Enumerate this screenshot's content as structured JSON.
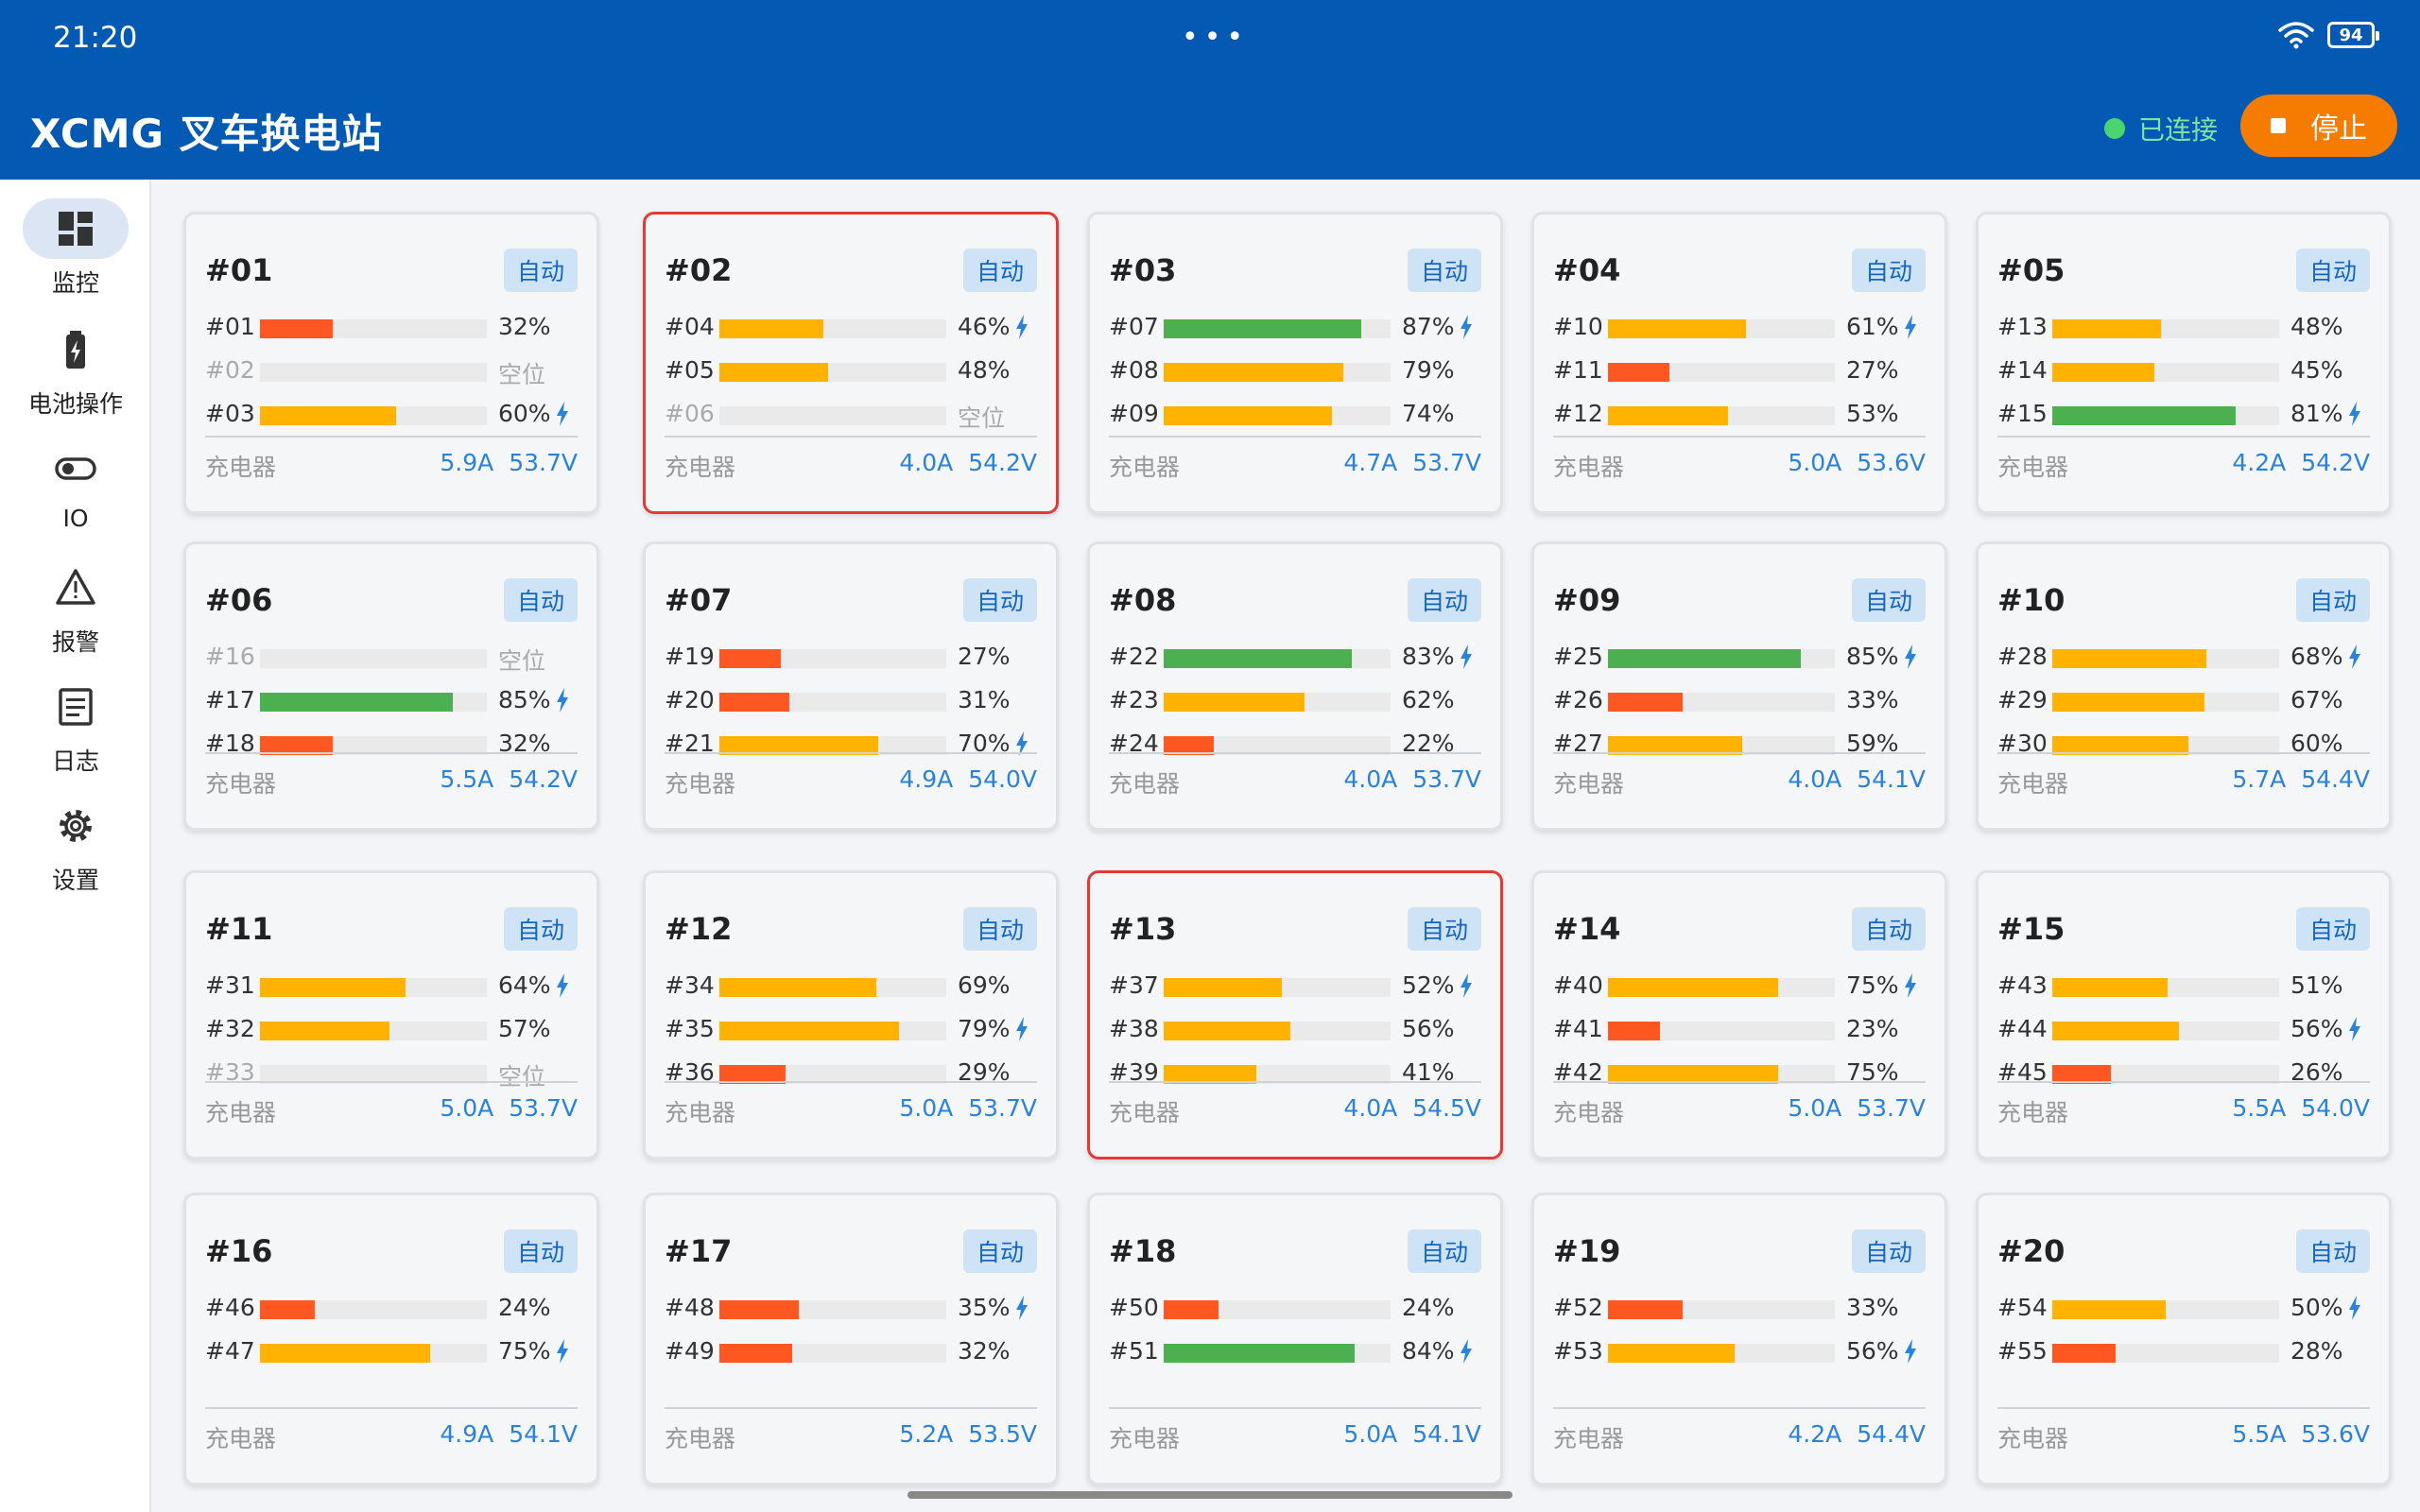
{
  "status_bar": {
    "time": "21:20",
    "battery": "94",
    "dots": "•••"
  },
  "header": {
    "title": "XCMG 叉车换电站",
    "connection": "已连接",
    "stop_label": "停止"
  },
  "colors": {
    "header_bg": "#045ab3",
    "high": "#4caf50",
    "mid": "#ffb300",
    "low": "#ff5722",
    "stop": "#f57c00",
    "alert_border": "#e53935"
  },
  "sidebar": {
    "items": [
      {
        "label": "监控",
        "icon": "dashboard-icon",
        "active": true
      },
      {
        "label": "电池操作",
        "icon": "battery-charging-icon",
        "active": false
      },
      {
        "label": "IO",
        "icon": "toggle-icon",
        "active": false
      },
      {
        "label": "报警",
        "icon": "warning-icon",
        "active": false
      },
      {
        "label": "日志",
        "icon": "log-list-icon",
        "active": false
      },
      {
        "label": "设置",
        "icon": "gear-icon",
        "active": false
      }
    ]
  },
  "charger_label": "充电器",
  "empty_label": "空位",
  "stations": [
    {
      "id": "#01",
      "mode": "自动",
      "alert": false,
      "slots": [
        {
          "id": "#01",
          "pct": 32,
          "charging": false
        },
        {
          "id": "#02",
          "pct": null,
          "charging": false
        },
        {
          "id": "#03",
          "pct": 60,
          "charging": true
        }
      ],
      "current": "5.9A",
      "voltage": "53.7V"
    },
    {
      "id": "#02",
      "mode": "自动",
      "alert": true,
      "slots": [
        {
          "id": "#04",
          "pct": 46,
          "charging": true
        },
        {
          "id": "#05",
          "pct": 48,
          "charging": false
        },
        {
          "id": "#06",
          "pct": null,
          "charging": false
        }
      ],
      "current": "4.0A",
      "voltage": "54.2V"
    },
    {
      "id": "#03",
      "mode": "自动",
      "alert": false,
      "slots": [
        {
          "id": "#07",
          "pct": 87,
          "charging": true
        },
        {
          "id": "#08",
          "pct": 79,
          "charging": false
        },
        {
          "id": "#09",
          "pct": 74,
          "charging": false
        }
      ],
      "current": "4.7A",
      "voltage": "53.7V"
    },
    {
      "id": "#04",
      "mode": "自动",
      "alert": false,
      "slots": [
        {
          "id": "#10",
          "pct": 61,
          "charging": true
        },
        {
          "id": "#11",
          "pct": 27,
          "charging": false
        },
        {
          "id": "#12",
          "pct": 53,
          "charging": false
        }
      ],
      "current": "5.0A",
      "voltage": "53.6V"
    },
    {
      "id": "#05",
      "mode": "自动",
      "alert": false,
      "slots": [
        {
          "id": "#13",
          "pct": 48,
          "charging": false
        },
        {
          "id": "#14",
          "pct": 45,
          "charging": false
        },
        {
          "id": "#15",
          "pct": 81,
          "charging": true
        }
      ],
      "current": "4.2A",
      "voltage": "54.2V"
    },
    {
      "id": "#06",
      "mode": "自动",
      "alert": false,
      "slots": [
        {
          "id": "#16",
          "pct": null,
          "charging": false
        },
        {
          "id": "#17",
          "pct": 85,
          "charging": true
        },
        {
          "id": "#18",
          "pct": 32,
          "charging": false
        }
      ],
      "current": "5.5A",
      "voltage": "54.2V"
    },
    {
      "id": "#07",
      "mode": "自动",
      "alert": false,
      "slots": [
        {
          "id": "#19",
          "pct": 27,
          "charging": false
        },
        {
          "id": "#20",
          "pct": 31,
          "charging": false
        },
        {
          "id": "#21",
          "pct": 70,
          "charging": true
        }
      ],
      "current": "4.9A",
      "voltage": "54.0V"
    },
    {
      "id": "#08",
      "mode": "自动",
      "alert": false,
      "slots": [
        {
          "id": "#22",
          "pct": 83,
          "charging": true
        },
        {
          "id": "#23",
          "pct": 62,
          "charging": false
        },
        {
          "id": "#24",
          "pct": 22,
          "charging": false
        }
      ],
      "current": "4.0A",
      "voltage": "53.7V"
    },
    {
      "id": "#09",
      "mode": "自动",
      "alert": false,
      "slots": [
        {
          "id": "#25",
          "pct": 85,
          "charging": true
        },
        {
          "id": "#26",
          "pct": 33,
          "charging": false
        },
        {
          "id": "#27",
          "pct": 59,
          "charging": false
        }
      ],
      "current": "4.0A",
      "voltage": "54.1V"
    },
    {
      "id": "#10",
      "mode": "自动",
      "alert": false,
      "slots": [
        {
          "id": "#28",
          "pct": 68,
          "charging": true
        },
        {
          "id": "#29",
          "pct": 67,
          "charging": false
        },
        {
          "id": "#30",
          "pct": 60,
          "charging": false
        }
      ],
      "current": "5.7A",
      "voltage": "54.4V"
    },
    {
      "id": "#11",
      "mode": "自动",
      "alert": false,
      "slots": [
        {
          "id": "#31",
          "pct": 64,
          "charging": true
        },
        {
          "id": "#32",
          "pct": 57,
          "charging": false
        },
        {
          "id": "#33",
          "pct": null,
          "charging": false
        }
      ],
      "current": "5.0A",
      "voltage": "53.7V"
    },
    {
      "id": "#12",
      "mode": "自动",
      "alert": false,
      "slots": [
        {
          "id": "#34",
          "pct": 69,
          "charging": false
        },
        {
          "id": "#35",
          "pct": 79,
          "charging": true
        },
        {
          "id": "#36",
          "pct": 29,
          "charging": false
        }
      ],
      "current": "5.0A",
      "voltage": "53.7V"
    },
    {
      "id": "#13",
      "mode": "自动",
      "alert": true,
      "slots": [
        {
          "id": "#37",
          "pct": 52,
          "charging": true
        },
        {
          "id": "#38",
          "pct": 56,
          "charging": false
        },
        {
          "id": "#39",
          "pct": 41,
          "charging": false
        }
      ],
      "current": "4.0A",
      "voltage": "54.5V"
    },
    {
      "id": "#14",
      "mode": "自动",
      "alert": false,
      "slots": [
        {
          "id": "#40",
          "pct": 75,
          "charging": true
        },
        {
          "id": "#41",
          "pct": 23,
          "charging": false
        },
        {
          "id": "#42",
          "pct": 75,
          "charging": false
        }
      ],
      "current": "5.0A",
      "voltage": "53.7V"
    },
    {
      "id": "#15",
      "mode": "自动",
      "alert": false,
      "slots": [
        {
          "id": "#43",
          "pct": 51,
          "charging": false
        },
        {
          "id": "#44",
          "pct": 56,
          "charging": true
        },
        {
          "id": "#45",
          "pct": 26,
          "charging": false
        }
      ],
      "current": "5.5A",
      "voltage": "54.0V"
    },
    {
      "id": "#16",
      "mode": "自动",
      "alert": false,
      "slots": [
        {
          "id": "#46",
          "pct": 24,
          "charging": false
        },
        {
          "id": "#47",
          "pct": 75,
          "charging": true
        }
      ],
      "current": "4.9A",
      "voltage": "54.1V"
    },
    {
      "id": "#17",
      "mode": "自动",
      "alert": false,
      "slots": [
        {
          "id": "#48",
          "pct": 35,
          "charging": true
        },
        {
          "id": "#49",
          "pct": 32,
          "charging": false
        }
      ],
      "current": "5.2A",
      "voltage": "53.5V"
    },
    {
      "id": "#18",
      "mode": "自动",
      "alert": false,
      "slots": [
        {
          "id": "#50",
          "pct": 24,
          "charging": false
        },
        {
          "id": "#51",
          "pct": 84,
          "charging": true
        }
      ],
      "current": "5.0A",
      "voltage": "54.1V"
    },
    {
      "id": "#19",
      "mode": "自动",
      "alert": false,
      "slots": [
        {
          "id": "#52",
          "pct": 33,
          "charging": false
        },
        {
          "id": "#53",
          "pct": 56,
          "charging": true
        }
      ],
      "current": "4.2A",
      "voltage": "54.4V"
    },
    {
      "id": "#20",
      "mode": "自动",
      "alert": false,
      "slots": [
        {
          "id": "#54",
          "pct": 50,
          "charging": true
        },
        {
          "id": "#55",
          "pct": 28,
          "charging": false
        }
      ],
      "current": "5.5A",
      "voltage": "53.6V"
    }
  ]
}
